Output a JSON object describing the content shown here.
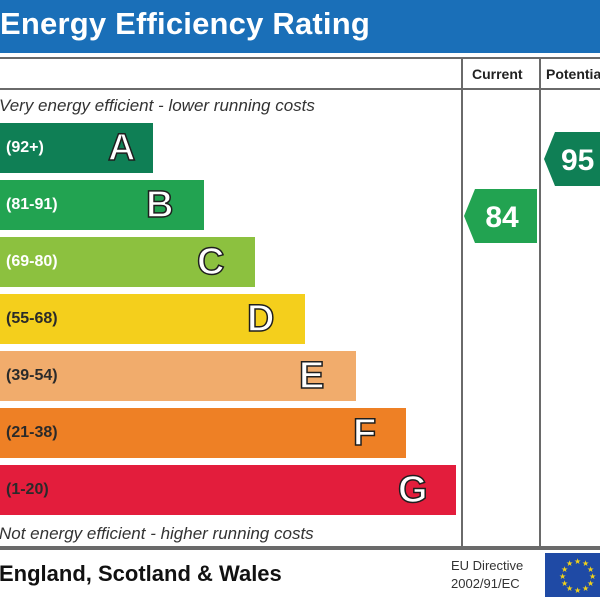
{
  "header": {
    "title": "Energy Efficiency Rating"
  },
  "columns": {
    "current": "Current",
    "potential": "Potential"
  },
  "captions": {
    "top": "Very energy efficient - lower running costs",
    "bottom": "Not energy efficient - higher running costs"
  },
  "bands": [
    {
      "range": "(92+)",
      "letter": "A",
      "color": "#0f7f55"
    },
    {
      "range": "(81-91)",
      "letter": "B",
      "color": "#22a351"
    },
    {
      "range": "(69-80)",
      "letter": "C",
      "color": "#8cc13f"
    },
    {
      "range": "(55-68)",
      "letter": "D",
      "color": "#f4cf1c"
    },
    {
      "range": "(39-54)",
      "letter": "E",
      "color": "#f1ac6c"
    },
    {
      "range": "(21-38)",
      "letter": "F",
      "color": "#ee8025"
    },
    {
      "range": "(1-20)",
      "letter": "G",
      "color": "#e31d3c"
    }
  ],
  "ratings": {
    "current": {
      "value": "84",
      "color": "#22a351"
    },
    "potential": {
      "value": "95",
      "color": "#0f7f55"
    }
  },
  "footer": {
    "region": "England, Scotland & Wales",
    "eu_line1": "EU Directive",
    "eu_line2": "2002/91/EC"
  }
}
